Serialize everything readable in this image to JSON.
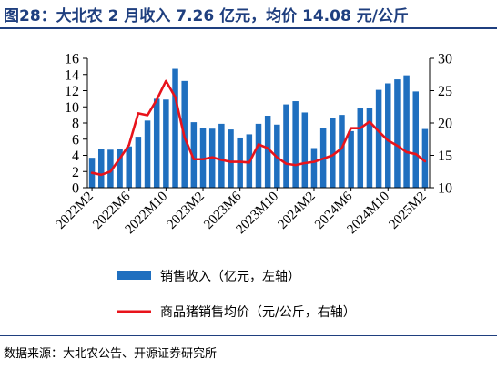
{
  "title": "图28：大北农 2 月收入 7.26 亿元，均价 14.08 元/公斤",
  "source": "数据来源：大北农公告、开源证券研究所",
  "chart_data": {
    "type": "bar",
    "categories": [
      "2022M2",
      "2022M3",
      "2022M4",
      "2022M5",
      "2022M6",
      "2022M7",
      "2022M8",
      "2022M9",
      "2022M10",
      "2022M11",
      "2022M12",
      "2023M1",
      "2023M2",
      "2023M3",
      "2023M4",
      "2023M5",
      "2023M6",
      "2023M7",
      "2023M8",
      "2023M9",
      "2023M10",
      "2023M11",
      "2023M12",
      "2024M1",
      "2024M2",
      "2024M3",
      "2024M4",
      "2024M5",
      "2024M6",
      "2024M7",
      "2024M8",
      "2024M9",
      "2024M10",
      "2024M11",
      "2024M12",
      "2025M1",
      "2025M2"
    ],
    "x_tick_labels": [
      "2022M2",
      "2022M6",
      "2022M10",
      "2023M2",
      "2023M6",
      "2023M10",
      "2024M2",
      "2024M6",
      "2024M10",
      "2025M2"
    ],
    "series": [
      {
        "name": "销售收入（亿元，左轴）",
        "type": "bar",
        "axis": "left",
        "color": "#1f6fbf",
        "values": [
          3.7,
          4.8,
          4.7,
          4.8,
          5.1,
          6.3,
          8.3,
          11.0,
          10.9,
          14.7,
          13.2,
          8.1,
          7.4,
          7.3,
          7.9,
          7.2,
          6.2,
          6.6,
          7.9,
          8.9,
          7.8,
          10.3,
          10.7,
          9.3,
          4.9,
          7.4,
          8.6,
          9.0,
          7.0,
          9.8,
          9.9,
          12.1,
          12.9,
          13.4,
          13.9,
          11.9,
          7.26
        ]
      },
      {
        "name": "商品猪销售均价（元/公斤，右轴）",
        "type": "line",
        "axis": "right",
        "color": "#e8131b",
        "values": [
          12.3,
          12.0,
          12.5,
          14.5,
          16.6,
          21.5,
          21.2,
          23.6,
          26.5,
          24.0,
          17.8,
          14.4,
          14.4,
          14.7,
          14.3,
          14.0,
          14.0,
          13.9,
          16.7,
          16.1,
          14.7,
          13.7,
          13.5,
          13.8,
          14.0,
          14.5,
          15.0,
          16.1,
          19.2,
          19.2,
          20.2,
          18.7,
          17.3,
          16.5,
          15.5,
          15.2,
          14.08
        ]
      }
    ],
    "y_left": {
      "min": 0,
      "max": 16,
      "ticks": [
        0,
        2,
        4,
        6,
        8,
        10,
        12,
        14,
        16
      ]
    },
    "y_right": {
      "min": 10,
      "max": 30,
      "ticks": [
        10,
        15,
        20,
        25,
        30
      ]
    },
    "grid": false,
    "legend_position": "bottom"
  }
}
